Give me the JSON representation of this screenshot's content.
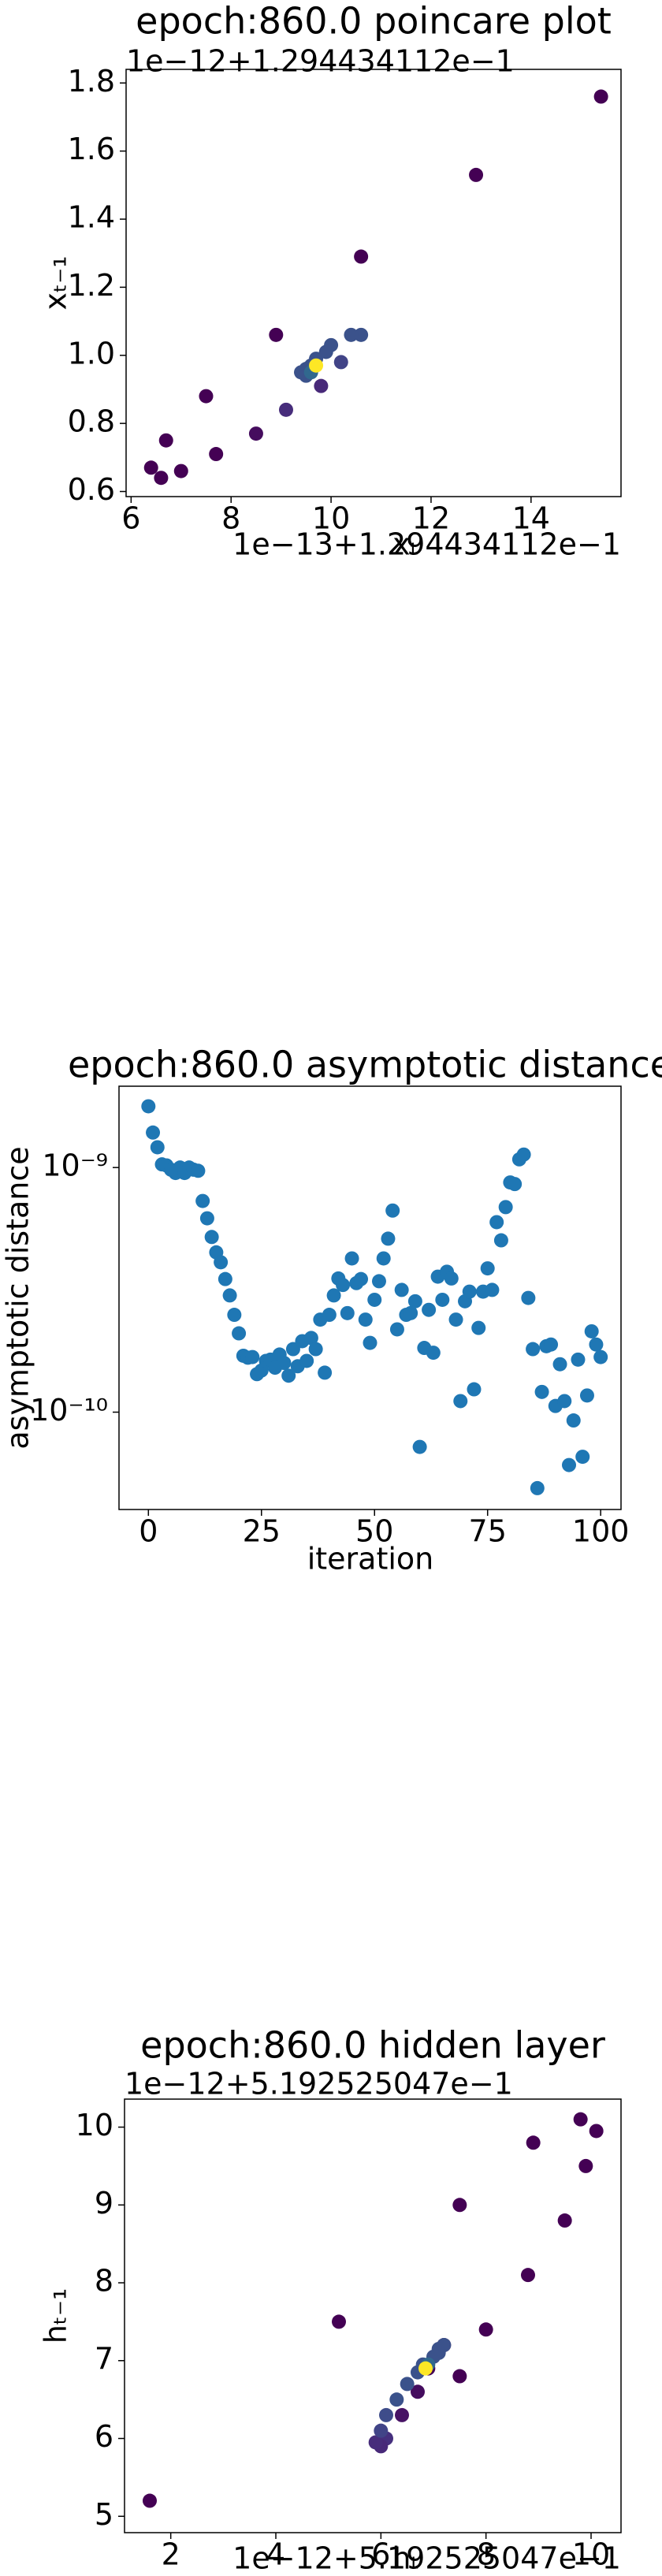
{
  "chart_data": [
    {
      "type": "scatter",
      "title": "epoch:860.0 poincare plot",
      "xlabel": "xₜ",
      "ylabel": "xₜ₋₁",
      "x_offset": "1e−13+1.294434112e−1",
      "y_offset": "1e−12+1.294434112e−1",
      "x": [
        15.4,
        12.9,
        10.6,
        8.9,
        7.5,
        6.7,
        6.4,
        6.6,
        7.0,
        7.7,
        8.5,
        9.1,
        9.8,
        10.2,
        10.6,
        10.4,
        10.0,
        9.9,
        9.7,
        9.6,
        9.5,
        9.4,
        9.5,
        9.6,
        9.7
      ],
      "y": [
        1.76,
        1.53,
        1.29,
        1.06,
        0.88,
        0.75,
        0.67,
        0.64,
        0.66,
        0.71,
        0.77,
        0.84,
        0.91,
        0.98,
        1.06,
        1.06,
        1.03,
        1.01,
        0.99,
        0.97,
        0.96,
        0.95,
        0.94,
        0.95,
        0.97
      ],
      "colors": [
        "#440154",
        "#440154",
        "#440154",
        "#440154",
        "#440154",
        "#440154",
        "#440154",
        "#440154",
        "#440154",
        "#440154",
        "#450c5e",
        "#472d7b",
        "#482979",
        "#414487",
        "#3b528b",
        "#3b528b",
        "#3b528b",
        "#3b528b",
        "#3b528b",
        "#3b528b",
        "#3b528b",
        "#3b528b",
        "#3b528b",
        "#31688e",
        "#fde725"
      ],
      "xlim": [
        5.9,
        15.8
      ],
      "ylim": [
        0.585,
        1.84
      ],
      "xticks": [
        6,
        8,
        10,
        12,
        14
      ],
      "yticks": [
        0.6,
        0.8,
        {
          "value": 1,
          "label": "1.0"
        },
        1.2,
        1.4,
        1.6,
        1.8
      ]
    },
    {
      "type": "scatter",
      "title": "epoch:860.0 asymptotic distance",
      "xlabel": "iteration",
      "ylabel": "asymptotic distance",
      "log_y": true,
      "color": "#1f77b4",
      "x": [
        0,
        1,
        2,
        3,
        4,
        5,
        6,
        7,
        8,
        9,
        10,
        11,
        12,
        13,
        14,
        15,
        16,
        17,
        18,
        19,
        20,
        21,
        22,
        23,
        24,
        25,
        26,
        27,
        28,
        29,
        30,
        31,
        32,
        33,
        34,
        35,
        36,
        37,
        38,
        39,
        40,
        41,
        42,
        43,
        44,
        45,
        46,
        47,
        48,
        49,
        50,
        51,
        52,
        53,
        54,
        55,
        56,
        57,
        58,
        59,
        60,
        61,
        62,
        63,
        64,
        65,
        66,
        67,
        68,
        69,
        70,
        71,
        72,
        73,
        74,
        75,
        76,
        77,
        78,
        79,
        80,
        81,
        82,
        83,
        84,
        85,
        86,
        87,
        88,
        89,
        90,
        91,
        92,
        93,
        94,
        95,
        96,
        97,
        98,
        99,
        100
      ],
      "y": [
        1.78e-09,
        1.39e-09,
        1.21e-09,
        1.03e-09,
        1.02e-09,
        9.8e-10,
        9.5e-10,
        1e-09,
        9.5e-10,
        1e-09,
        9.8e-10,
        9.7e-10,
        7.3e-10,
        6.2e-10,
        5.2e-10,
        4.5e-10,
        4.1e-10,
        3.5e-10,
        3e-10,
        2.5e-10,
        2.1e-10,
        1.7e-10,
        1.67e-10,
        1.68e-10,
        1.43e-10,
        1.48e-10,
        1.62e-10,
        1.64e-10,
        1.52e-10,
        1.72e-10,
        1.59e-10,
        1.41e-10,
        1.81e-10,
        1.54e-10,
        1.95e-10,
        1.62e-10,
        2.01e-10,
        1.81e-10,
        2.39e-10,
        1.45e-10,
        2.5e-10,
        3e-10,
        3.52e-10,
        3.31e-10,
        2.54e-10,
        4.25e-10,
        3.37e-10,
        3.5e-10,
        2.39e-10,
        1.92e-10,
        2.88e-10,
        3.43e-10,
        4.25e-10,
        5.12e-10,
        6.67e-10,
        2.18e-10,
        3.16e-10,
        2.5e-10,
        2.54e-10,
        2.84e-10,
        7.21e-11,
        1.83e-10,
        2.62e-10,
        1.75e-10,
        3.58e-10,
        2.88e-10,
        3.75e-10,
        3.52e-10,
        2.39e-10,
        1.11e-10,
        2.84e-10,
        3.11e-10,
        1.24e-10,
        2.21e-10,
        3.11e-10,
        3.87e-10,
        3.16e-10,
        5.98e-10,
        5.04e-10,
        6.89e-10,
        8.69e-10,
        8.56e-10,
        1.08e-09,
        1.13e-09,
        2.93e-10,
        1.81e-10,
        4.89e-11,
        1.21e-10,
        1.86e-10,
        1.89e-10,
        1.06e-10,
        1.57e-10,
        1.11e-10,
        6.08e-11,
        9.25e-11,
        1.64e-10,
        6.57e-11,
        1.17e-10,
        2.14e-10,
        1.89e-10,
        1.68e-10
      ],
      "xlim": [
        -6.5,
        104.5
      ],
      "ylim": [
        4e-11,
        2.15e-09
      ],
      "xticks": [
        0,
        25,
        50,
        75,
        100
      ],
      "yticks": [
        {
          "value": 1e-10,
          "label": "10⁻¹⁰"
        },
        {
          "value": 1e-09,
          "label": "10⁻⁹"
        }
      ]
    },
    {
      "type": "scatter",
      "title": "epoch:860.0 hidden layer",
      "xlabel": "hₜ",
      "ylabel": "hₜ₋₁",
      "x_offset": "1e−12+5.192525047e−1",
      "y_offset": "1e−12+5.192525047e−1",
      "x": [
        1.6,
        5.2,
        7.5,
        9.8,
        10.1,
        9.9,
        8.9,
        9.5,
        8.8,
        8.0,
        7.5,
        7.2,
        6.9,
        6.7,
        6.4,
        6.1,
        6.0,
        5.9,
        6.0,
        6.1,
        6.3,
        6.5,
        6.7,
        6.8,
        7.0,
        7.1,
        7.2,
        7.1,
        6.9,
        6.85
      ],
      "y": [
        5.2,
        7.5,
        9.0,
        10.1,
        9.95,
        9.5,
        9.8,
        8.8,
        8.1,
        7.4,
        6.8,
        7.2,
        6.9,
        6.6,
        6.3,
        6.0,
        5.9,
        5.95,
        6.1,
        6.3,
        6.5,
        6.7,
        6.85,
        6.95,
        7.05,
        7.15,
        7.2,
        7.1,
        6.95,
        6.9
      ],
      "colors": [
        "#440154",
        "#440154",
        "#440154",
        "#440154",
        "#440154",
        "#440154",
        "#440154",
        "#440154",
        "#440154",
        "#440154",
        "#440154",
        "#440154",
        "#440154",
        "#450c5e",
        "#471365",
        "#46307e",
        "#482979",
        "#472d7b",
        "#414487",
        "#3e4c8a",
        "#3b528b",
        "#3b528b",
        "#3b528b",
        "#3b528b",
        "#3b528b",
        "#3b528b",
        "#3b528b",
        "#3b528b",
        "#31688e",
        "#fde725"
      ],
      "xlim": [
        1.12,
        10.57
      ],
      "ylim": [
        4.79,
        10.36
      ],
      "xticks": [
        2,
        4,
        6,
        8,
        10
      ],
      "yticks": [
        5,
        6,
        7,
        8,
        9,
        10
      ]
    }
  ]
}
